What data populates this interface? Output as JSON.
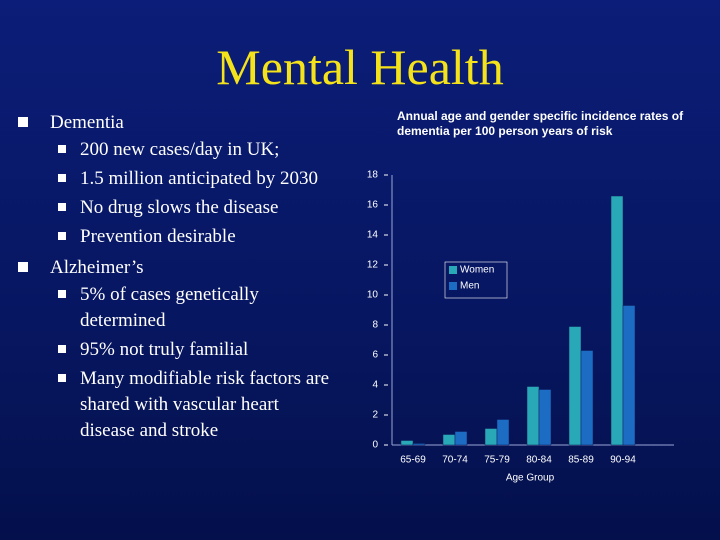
{
  "title": "Mental Health",
  "bullets": [
    {
      "text": "Dementia",
      "items": [
        "200 new cases/day in UK;",
        "1.5 million anticipated by 2030",
        "No drug slows the disease",
        "Prevention desirable"
      ]
    },
    {
      "text": "Alzheimer’s",
      "items": [
        "5% of cases genetically determined",
        "95% not truly familial",
        "Many modifiable risk factors are shared with vascular heart disease and stroke"
      ]
    }
  ],
  "chart_data": {
    "type": "bar",
    "title": "Annual age and gender specific incidence rates of dementia per 100 person years of risk",
    "x_label": "Age Group",
    "categories": [
      "65-69",
      "70-74",
      "75-79",
      "80-84",
      "85-89",
      "90-94"
    ],
    "series": [
      {
        "name": "Women",
        "color": "#29a9b8",
        "values": [
          0.3,
          0.7,
          1.1,
          3.9,
          7.9,
          16.6
        ]
      },
      {
        "name": "Men",
        "color": "#1c6cc4",
        "values": [
          0.1,
          0.9,
          1.7,
          3.7,
          6.3,
          9.3
        ]
      }
    ],
    "ylim": [
      0,
      18
    ],
    "yticks": [
      0,
      2,
      4,
      6,
      8,
      10,
      12,
      14,
      16,
      18
    ]
  }
}
